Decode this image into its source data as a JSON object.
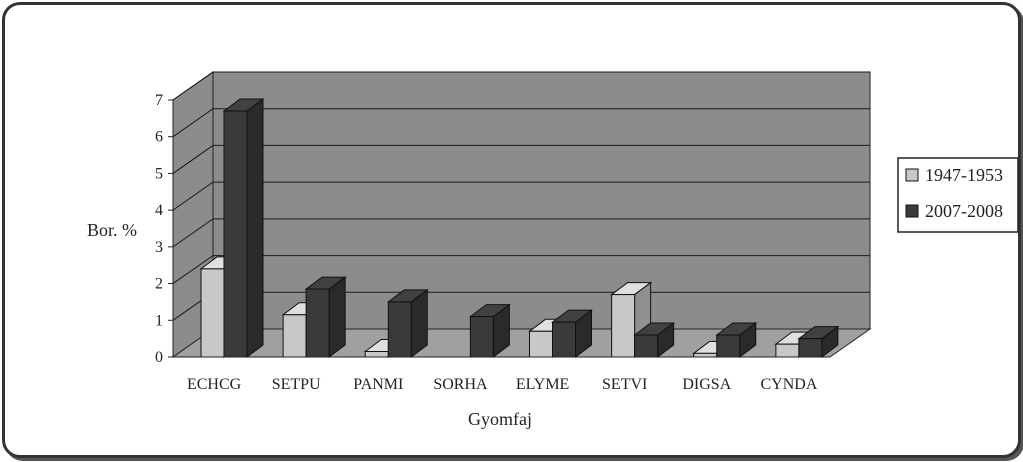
{
  "chart_data": {
    "type": "bar",
    "style": "3d",
    "categories": [
      "ECHCG",
      "SETPU",
      "PANMI",
      "SORHA",
      "ELYME",
      "SETVI",
      "DIGSA",
      "CYNDA"
    ],
    "series": [
      {
        "name": "1947-1953",
        "values": [
          2.4,
          1.15,
          0.15,
          0,
          0.7,
          1.7,
          0.1,
          0.35
        ],
        "color": "#c8c8c8"
      },
      {
        "name": "2007-2008",
        "values": [
          6.7,
          1.85,
          1.5,
          1.1,
          0.95,
          0.6,
          0.6,
          0.5
        ],
        "color": "#3a3a3a"
      }
    ],
    "ylabel": "Bor. %",
    "xlabel": "Gyomfaj",
    "ylim": [
      0,
      7
    ],
    "yticks": [
      "0",
      "1",
      "2",
      "3",
      "4",
      "5",
      "6",
      "7"
    ],
    "grid": true,
    "legend_position": "right",
    "wall_color": "#8c8c8c"
  }
}
